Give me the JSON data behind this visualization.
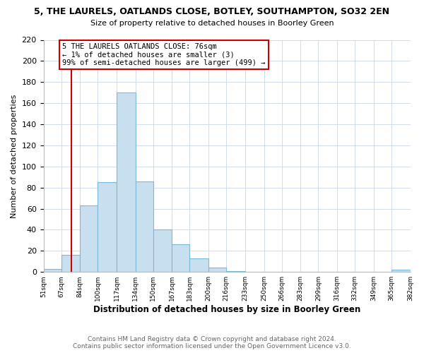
{
  "title1": "5, THE LAURELS, OATLANDS CLOSE, BOTLEY, SOUTHAMPTON, SO32 2EN",
  "title2": "Size of property relative to detached houses in Boorley Green",
  "xlabel": "Distribution of detached houses by size in Boorley Green",
  "ylabel": "Number of detached properties",
  "bin_edges": [
    51,
    67,
    84,
    100,
    117,
    134,
    150,
    167,
    183,
    200,
    216,
    233,
    250,
    266,
    283,
    299,
    316,
    332,
    349,
    365,
    382
  ],
  "bar_heights": [
    3,
    16,
    63,
    85,
    170,
    86,
    40,
    26,
    13,
    4,
    1,
    0,
    0,
    0,
    0,
    0,
    0,
    0,
    0,
    2
  ],
  "bar_color": "#c8dff0",
  "bar_edge_color": "#7ab8d8",
  "property_line_x": 76,
  "property_line_color": "#cc0000",
  "annotation_title": "5 THE LAURELS OATLANDS CLOSE: 76sqm",
  "annotation_line1": "← 1% of detached houses are smaller (3)",
  "annotation_line2": "99% of semi-detached houses are larger (499) →",
  "annotation_box_color": "#ffffff",
  "annotation_box_edge": "#cc0000",
  "ylim": [
    0,
    220
  ],
  "yticks": [
    0,
    20,
    40,
    60,
    80,
    100,
    120,
    140,
    160,
    180,
    200,
    220
  ],
  "tick_labels": [
    "51sqm",
    "67sqm",
    "84sqm",
    "100sqm",
    "117sqm",
    "134sqm",
    "150sqm",
    "167sqm",
    "183sqm",
    "200sqm",
    "216sqm",
    "233sqm",
    "250sqm",
    "266sqm",
    "283sqm",
    "299sqm",
    "316sqm",
    "332sqm",
    "349sqm",
    "365sqm",
    "382sqm"
  ],
  "footer1": "Contains HM Land Registry data © Crown copyright and database right 2024.",
  "footer2": "Contains public sector information licensed under the Open Government Licence v3.0.",
  "grid_color": "#d0dcea",
  "background_color": "#ffffff"
}
